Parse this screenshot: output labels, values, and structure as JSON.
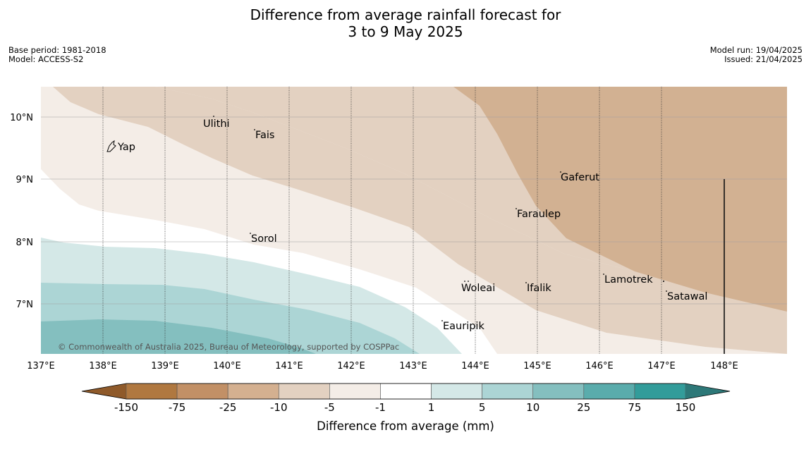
{
  "title": {
    "line1": "Difference from average rainfall forecast for",
    "line2": "3 to 9 May 2025"
  },
  "meta": {
    "base_period": "Base period: 1981-2018",
    "model": "Model: ACCESS-S2",
    "model_run": "Model run: 19/04/2025",
    "issued": "Issued: 21/04/2025"
  },
  "map": {
    "x_ticks": [
      "137°E",
      "138°E",
      "139°E",
      "140°E",
      "141°E",
      "142°E",
      "143°E",
      "144°E",
      "145°E",
      "146°E",
      "147°E",
      "148°E"
    ],
    "y_ticks": [
      "10°N",
      "9°N",
      "8°N",
      "7°N"
    ],
    "places": [
      {
        "name": "Yap",
        "lon": 138.2,
        "lat": 9.5
      },
      {
        "name": "Ulithi",
        "lon": 139.6,
        "lat": 9.9
      },
      {
        "name": "Fais",
        "lon": 140.4,
        "lat": 9.75
      },
      {
        "name": "Gaferut",
        "lon": 145.4,
        "lat": 9.1
      },
      {
        "name": "Faraulep",
        "lon": 144.6,
        "lat": 8.45
      },
      {
        "name": "Sorol",
        "lon": 140.4,
        "lat": 8.05
      },
      {
        "name": "Woleai",
        "lon": 143.9,
        "lat": 7.3
      },
      {
        "name": "Ifalik",
        "lon": 144.8,
        "lat": 7.3
      },
      {
        "name": "Lamotrek",
        "lon": 146.0,
        "lat": 7.4
      },
      {
        "name": "Satawal",
        "lon": 147.0,
        "lat": 7.15
      },
      {
        "name": "Eauripik",
        "lon": 143.5,
        "lat": 6.75
      }
    ],
    "copyright": "© Commonwealth of Australia 2025, Bureau of Meteorology, supported by COSPPac"
  },
  "colorbar": {
    "label": "Difference from average (mm)",
    "ticks": [
      "-150",
      "-75",
      "-25",
      "-10",
      "-5",
      "-1",
      "1",
      "5",
      "10",
      "25",
      "75",
      "150"
    ],
    "colors": [
      "#8f5a2a",
      "#b07840",
      "#c29066",
      "#d4b090",
      "#e3d1c1",
      "#f4ede7",
      "#ffffff",
      "#d4e8e7",
      "#acd5d5",
      "#84bfbf",
      "#5aacac",
      "#329c9a",
      "#2d7878"
    ]
  }
}
